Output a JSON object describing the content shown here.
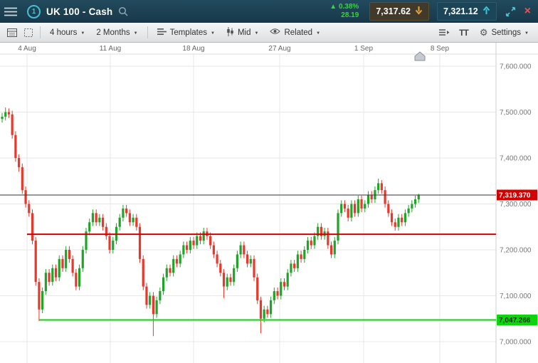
{
  "header": {
    "title": "UK 100 - Cash",
    "change_up_icon": "▲",
    "change_pct": "0.38%",
    "change_value": "28.19",
    "sell_price": "7,317.62",
    "buy_price": "7,321.12",
    "close_label": "×"
  },
  "toolbar": {
    "interval_label": "4 hours",
    "period_label": "2 Months",
    "templates_label": "Templates",
    "price_type_label": "Mid",
    "related_label": "Related",
    "text_size_label": "TT",
    "settings_label": "Settings"
  },
  "chart_data": {
    "type": "candlestick",
    "instrument": "UK 100 - Cash",
    "interval": "4 hours",
    "range": "2 Months",
    "x_axis_dates": [
      "4 Aug",
      "11 Aug",
      "18 Aug",
      "27 Aug",
      "1 Sep",
      "8 Sep"
    ],
    "y_ticks": [
      7600,
      7500,
      7400,
      7300,
      7200,
      7100,
      7000
    ],
    "y_tick_labels": [
      "7,600.000",
      "7,500.000",
      "7,400.000",
      "7,300.000",
      "7,200.000",
      "7,100.000",
      "7,000.000"
    ],
    "ylim": [
      6955,
      7626
    ],
    "grid": true,
    "colors": {
      "up": "#1fa428",
      "down": "#e8382c",
      "support": "#0bd60b",
      "resistance": "#d20000",
      "price_label_bg": "#d20000",
      "current_line": "#333333"
    },
    "levels": {
      "current": {
        "value": 7319.37,
        "label": "7,319.370"
      },
      "resistance": {
        "value": 7234,
        "x_start": 38
      },
      "support": {
        "value": 7047.266,
        "label": "7,047.266",
        "x_start": 55
      }
    },
    "candles": [
      [
        7485,
        7498,
        7477,
        7490
      ],
      [
        7490,
        7510,
        7482,
        7500
      ],
      [
        7500,
        7508,
        7487,
        7495
      ],
      [
        7495,
        7503,
        7442,
        7450
      ],
      [
        7450,
        7458,
        7392,
        7400
      ],
      [
        7400,
        7408,
        7370,
        7380
      ],
      [
        7380,
        7388,
        7322,
        7330
      ],
      [
        7330,
        7338,
        7292,
        7300
      ],
      [
        7300,
        7308,
        7272,
        7280
      ],
      [
        7280,
        7288,
        7212,
        7220
      ],
      [
        7220,
        7228,
        7122,
        7130
      ],
      [
        7130,
        7138,
        7045,
        7070
      ],
      [
        7070,
        7118,
        7062,
        7110
      ],
      [
        7110,
        7158,
        7102,
        7150
      ],
      [
        7150,
        7158,
        7122,
        7130
      ],
      [
        7130,
        7168,
        7122,
        7160
      ],
      [
        7160,
        7168,
        7132,
        7140
      ],
      [
        7140,
        7188,
        7132,
        7180
      ],
      [
        7180,
        7188,
        7152,
        7160
      ],
      [
        7160,
        7208,
        7152,
        7200
      ],
      [
        7200,
        7208,
        7172,
        7180
      ],
      [
        7180,
        7188,
        7142,
        7150
      ],
      [
        7150,
        7158,
        7112,
        7120
      ],
      [
        7120,
        7168,
        7112,
        7160
      ],
      [
        7160,
        7208,
        7152,
        7200
      ],
      [
        7200,
        7248,
        7192,
        7240
      ],
      [
        7240,
        7268,
        7232,
        7260
      ],
      [
        7260,
        7288,
        7252,
        7280
      ],
      [
        7280,
        7288,
        7252,
        7260
      ],
      [
        7260,
        7278,
        7252,
        7270
      ],
      [
        7270,
        7278,
        7242,
        7250
      ],
      [
        7250,
        7258,
        7222,
        7230
      ],
      [
        7230,
        7238,
        7192,
        7200
      ],
      [
        7200,
        7228,
        7192,
        7220
      ],
      [
        7220,
        7258,
        7212,
        7250
      ],
      [
        7250,
        7278,
        7242,
        7270
      ],
      [
        7270,
        7298,
        7262,
        7290
      ],
      [
        7290,
        7298,
        7272,
        7280
      ],
      [
        7280,
        7288,
        7252,
        7260
      ],
      [
        7260,
        7278,
        7252,
        7270
      ],
      [
        7270,
        7278,
        7242,
        7250
      ],
      [
        7250,
        7258,
        7172,
        7180
      ],
      [
        7180,
        7188,
        7112,
        7120
      ],
      [
        7120,
        7128,
        7072,
        7080
      ],
      [
        7080,
        7108,
        7072,
        7100
      ],
      [
        7100,
        7108,
        7012,
        7060
      ],
      [
        7060,
        7098,
        7052,
        7090
      ],
      [
        7090,
        7118,
        7082,
        7110
      ],
      [
        7110,
        7148,
        7102,
        7140
      ],
      [
        7140,
        7168,
        7132,
        7160
      ],
      [
        7160,
        7168,
        7142,
        7150
      ],
      [
        7150,
        7188,
        7142,
        7180
      ],
      [
        7180,
        7188,
        7162,
        7170
      ],
      [
        7170,
        7198,
        7162,
        7190
      ],
      [
        7190,
        7218,
        7182,
        7210
      ],
      [
        7210,
        7218,
        7192,
        7200
      ],
      [
        7200,
        7228,
        7192,
        7220
      ],
      [
        7220,
        7228,
        7202,
        7210
      ],
      [
        7210,
        7238,
        7202,
        7230
      ],
      [
        7230,
        7238,
        7212,
        7220
      ],
      [
        7220,
        7248,
        7212,
        7240
      ],
      [
        7240,
        7248,
        7222,
        7230
      ],
      [
        7230,
        7238,
        7202,
        7210
      ],
      [
        7210,
        7218,
        7182,
        7190
      ],
      [
        7190,
        7198,
        7162,
        7170
      ],
      [
        7170,
        7178,
        7142,
        7150
      ],
      [
        7150,
        7158,
        7095,
        7120
      ],
      [
        7120,
        7148,
        7112,
        7140
      ],
      [
        7140,
        7148,
        7122,
        7130
      ],
      [
        7130,
        7168,
        7122,
        7160
      ],
      [
        7160,
        7198,
        7152,
        7190
      ],
      [
        7190,
        7218,
        7182,
        7210
      ],
      [
        7210,
        7218,
        7182,
        7190
      ],
      [
        7190,
        7198,
        7162,
        7170
      ],
      [
        7170,
        7188,
        7162,
        7180
      ],
      [
        7180,
        7188,
        7132,
        7140
      ],
      [
        7140,
        7148,
        7082,
        7090
      ],
      [
        7090,
        7098,
        7018,
        7050
      ],
      [
        7050,
        7078,
        7042,
        7070
      ],
      [
        7070,
        7078,
        7052,
        7060
      ],
      [
        7060,
        7098,
        7052,
        7090
      ],
      [
        7090,
        7118,
        7082,
        7110
      ],
      [
        7110,
        7118,
        7092,
        7100
      ],
      [
        7100,
        7138,
        7092,
        7130
      ],
      [
        7130,
        7138,
        7112,
        7120
      ],
      [
        7120,
        7158,
        7112,
        7150
      ],
      [
        7150,
        7178,
        7142,
        7170
      ],
      [
        7170,
        7178,
        7152,
        7160
      ],
      [
        7160,
        7198,
        7152,
        7190
      ],
      [
        7190,
        7198,
        7172,
        7180
      ],
      [
        7180,
        7208,
        7172,
        7200
      ],
      [
        7200,
        7228,
        7192,
        7220
      ],
      [
        7220,
        7228,
        7202,
        7210
      ],
      [
        7210,
        7238,
        7202,
        7230
      ],
      [
        7230,
        7258,
        7222,
        7250
      ],
      [
        7250,
        7258,
        7222,
        7230
      ],
      [
        7230,
        7248,
        7222,
        7240
      ],
      [
        7240,
        7248,
        7202,
        7210
      ],
      [
        7210,
        7218,
        7182,
        7190
      ],
      [
        7190,
        7228,
        7182,
        7220
      ],
      [
        7220,
        7288,
        7212,
        7280
      ],
      [
        7280,
        7308,
        7272,
        7300
      ],
      [
        7300,
        7308,
        7282,
        7290
      ],
      [
        7290,
        7298,
        7262,
        7270
      ],
      [
        7270,
        7308,
        7262,
        7300
      ],
      [
        7300,
        7308,
        7272,
        7280
      ],
      [
        7280,
        7318,
        7272,
        7310
      ],
      [
        7310,
        7318,
        7282,
        7290
      ],
      [
        7290,
        7308,
        7282,
        7300
      ],
      [
        7300,
        7328,
        7292,
        7320
      ],
      [
        7320,
        7328,
        7302,
        7310
      ],
      [
        7310,
        7338,
        7302,
        7330
      ],
      [
        7330,
        7355,
        7322,
        7345
      ],
      [
        7345,
        7352,
        7322,
        7330
      ],
      [
        7330,
        7338,
        7292,
        7300
      ],
      [
        7300,
        7308,
        7272,
        7280
      ],
      [
        7280,
        7288,
        7252,
        7260
      ],
      [
        7260,
        7268,
        7242,
        7250
      ],
      [
        7250,
        7278,
        7242,
        7270
      ],
      [
        7270,
        7278,
        7252,
        7260
      ],
      [
        7260,
        7288,
        7252,
        7280
      ],
      [
        7280,
        7298,
        7272,
        7290
      ],
      [
        7290,
        7308,
        7282,
        7300
      ],
      [
        7300,
        7318,
        7292,
        7310
      ],
      [
        7310,
        7322,
        7302,
        7319.4
      ]
    ]
  }
}
